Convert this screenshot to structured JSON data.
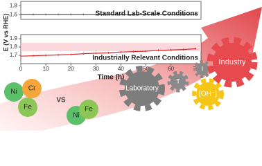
{
  "chart_data": [
    {
      "type": "line",
      "title": "Standard Lab-Scale Conditions",
      "x": [
        0,
        5,
        10,
        15,
        20,
        25,
        30,
        35,
        40,
        45,
        50,
        55,
        60,
        65,
        70
      ],
      "series": [
        {
          "name": "Standard",
          "color": "#555555",
          "values": [
            1.61,
            1.61,
            1.61,
            1.61,
            1.61,
            1.61,
            1.61,
            1.61,
            1.61,
            1.61,
            1.61,
            1.61,
            1.61,
            1.61,
            1.61
          ]
        }
      ],
      "xlim": [
        0,
        72
      ],
      "ylim": [
        1.5,
        1.9
      ],
      "yticks": [
        1.6,
        1.8
      ]
    },
    {
      "type": "line",
      "title": "Industrially Relevant Conditions",
      "x_label": "Time (h)",
      "y_label": "E (V vs RHE)",
      "x": [
        0,
        5,
        10,
        15,
        20,
        25,
        30,
        35,
        40,
        45,
        50,
        55,
        60,
        65,
        70
      ],
      "series": [
        {
          "name": "Industrial",
          "color": "#d62728",
          "values": [
            1.69,
            1.695,
            1.7,
            1.705,
            1.71,
            1.72,
            1.725,
            1.73,
            1.74,
            1.745,
            1.75,
            1.76,
            1.765,
            1.77,
            1.78
          ]
        }
      ],
      "xlim": [
        0,
        72
      ],
      "xticks": [
        0,
        10,
        20,
        30,
        40,
        50,
        60,
        70
      ],
      "ylim": [
        1.6,
        1.95
      ],
      "yticks": [
        1.7,
        1.8,
        1.9
      ]
    }
  ],
  "illustration": {
    "elements_a": [
      "Ni",
      "Cr",
      "Fe"
    ],
    "versus": "VS",
    "elements_b": [
      "Ni",
      "Fe"
    ],
    "gears": [
      "Laboratory",
      "T",
      "I",
      "[OH⁻]",
      "Industry"
    ]
  }
}
